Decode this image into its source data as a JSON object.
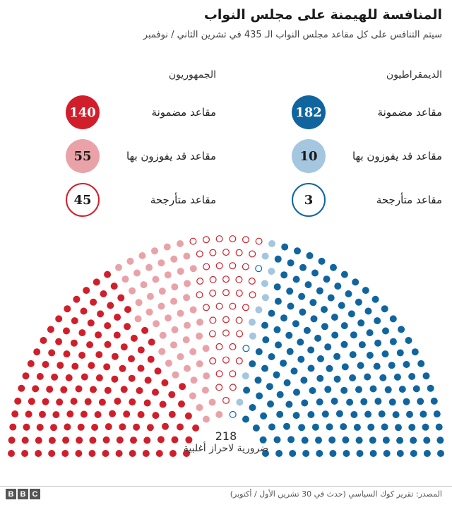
{
  "title": "المنافسة للهيمنة على مجلس النواب",
  "subtitle": "سيتم التنافس على كل مقاعد مجلس النواب الـ 435 في تشرين الثاني / نوفمبر",
  "parties": {
    "dem": {
      "name": "الديمقراطيون",
      "stats": [
        {
          "label": "مقاعد مضمونة",
          "value": "182"
        },
        {
          "label": "مقاعد قد يفوزون بها",
          "value": "10"
        },
        {
          "label": "مقاعد متأرجحة",
          "value": "3"
        }
      ]
    },
    "rep": {
      "name": "الجمهوريون",
      "stats": [
        {
          "label": "مقاعد مضمونة",
          "value": "140"
        },
        {
          "label": "مقاعد قد يفوزون بها",
          "value": "55"
        },
        {
          "label": "مقاعد متأرجحة",
          "value": "45"
        }
      ]
    }
  },
  "majority": {
    "value": "218",
    "label": "ضرورية لاحراز أغلبية"
  },
  "source": "المصدر: تقرير كوك السياسي (حدث في 30 تشرين الأول / أكتوبر)",
  "logo": [
    "B",
    "B",
    "C"
  ],
  "colors": {
    "rep_safe": "#d01f2b",
    "rep_likely": "#e9a3a8",
    "rep_tossup": "#d01f2b",
    "dem_tossup": "#11659f",
    "dem_likely": "#a4c6df",
    "dem_safe": "#11659f"
  },
  "chart_data": {
    "type": "parliament",
    "total_seats": 435,
    "majority": 218,
    "order_left_to_right": [
      "rep_safe",
      "rep_likely",
      "rep_tossup",
      "dem_tossup",
      "dem_likely",
      "dem_safe"
    ],
    "groups": [
      {
        "key": "rep_safe",
        "party": "الجمهوريون",
        "category": "مقاعد مضمونة",
        "seats": 140,
        "style": "filled"
      },
      {
        "key": "rep_likely",
        "party": "الجمهوريون",
        "category": "مقاعد قد يفوزون بها",
        "seats": 55,
        "style": "filled"
      },
      {
        "key": "rep_tossup",
        "party": "الجمهوريون",
        "category": "مقاعد متأرجحة",
        "seats": 45,
        "style": "outline"
      },
      {
        "key": "dem_tossup",
        "party": "الديمقراطيون",
        "category": "مقاعد متأرجحة",
        "seats": 3,
        "style": "outline"
      },
      {
        "key": "dem_likely",
        "party": "الديمقراطيون",
        "category": "مقاعد قد يفوزون بها",
        "seats": 10,
        "style": "filled"
      },
      {
        "key": "dem_safe",
        "party": "الديمقراطيون",
        "category": "مقاعد مضمونة",
        "seats": 182,
        "style": "filled"
      }
    ]
  }
}
